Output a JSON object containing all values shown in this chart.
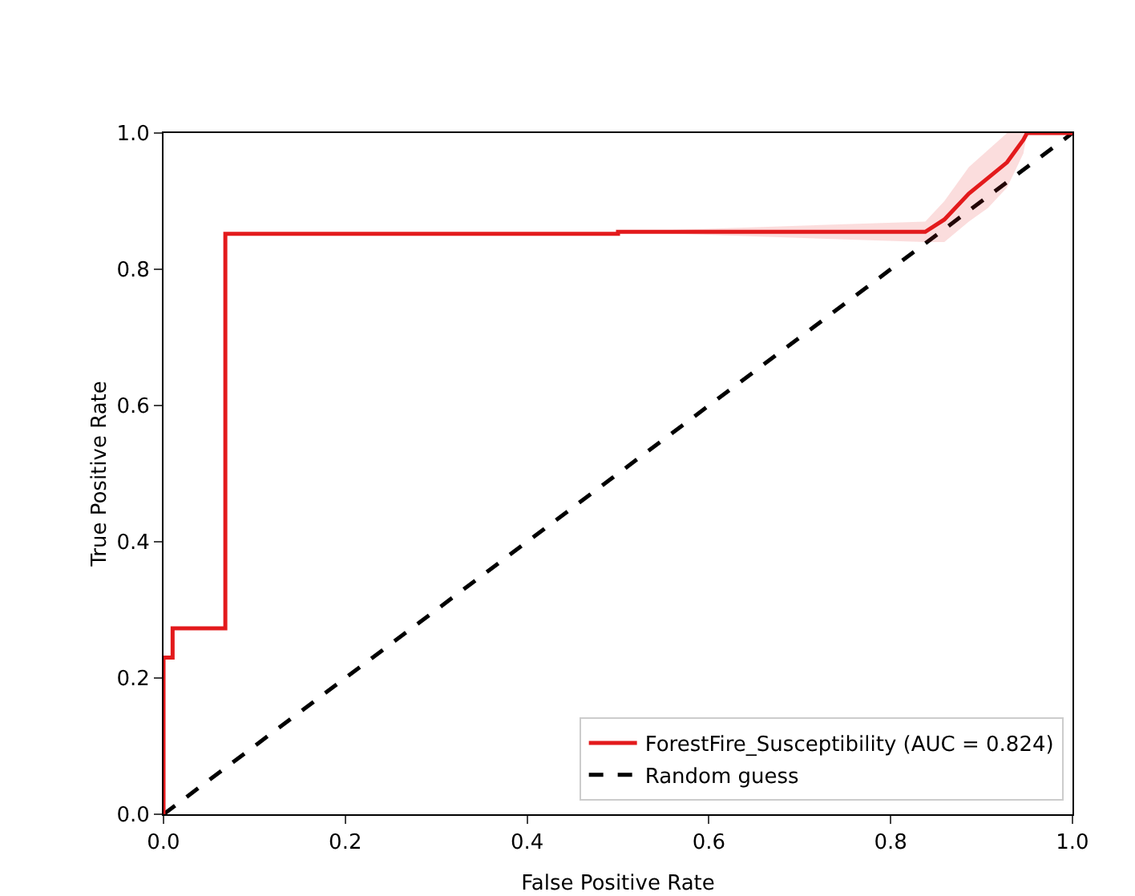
{
  "chart_data": {
    "type": "line",
    "xlabel": "False Positive Rate",
    "ylabel": "True Positive Rate",
    "xlim": [
      0,
      1
    ],
    "ylim": [
      0,
      1
    ],
    "xticks": [
      {
        "value": 0,
        "label": "0.0"
      },
      0.2,
      0.4,
      0.6,
      0.8,
      {
        "value": 1,
        "label": "1.0"
      }
    ],
    "yticks": [
      {
        "value": 0,
        "label": "0.0"
      },
      0.2,
      0.4,
      0.6,
      0.8,
      {
        "value": 1,
        "label": "1.0"
      }
    ],
    "grid": false,
    "legend": "bottom right",
    "marker": "none",
    "series": [
      {
        "name": "Random guess",
        "color": "#000000",
        "line_style": "dashed",
        "x": [
          0,
          1
        ],
        "values": [
          0,
          1
        ]
      },
      {
        "name": "ForestFire_Susceptibility (AUC = 0.824)",
        "color": "#e31a1c",
        "line_style": "solid",
        "x": [
          0,
          0,
          0.01,
          0.01,
          0.068,
          0.068,
          0.5,
          0.5,
          0.838,
          0.859,
          0.886,
          0.907,
          0.928,
          0.946,
          0.95,
          1
        ],
        "values": [
          0,
          0.23,
          0.23,
          0.273,
          0.273,
          0.852,
          0.852,
          0.855,
          0.855,
          0.873,
          0.911,
          0.934,
          0.957,
          0.99,
          1,
          1
        ],
        "lower": [
          0,
          0.23,
          0.23,
          0.273,
          0.273,
          0.852,
          0.852,
          0.855,
          0.84,
          0.84,
          0.87,
          0.89,
          0.92,
          0.97,
          1,
          1
        ],
        "upper": [
          0,
          0.23,
          0.23,
          0.273,
          0.273,
          0.852,
          0.852,
          0.855,
          0.87,
          0.9,
          0.95,
          0.975,
          1,
          1,
          1,
          1
        ]
      }
    ]
  }
}
